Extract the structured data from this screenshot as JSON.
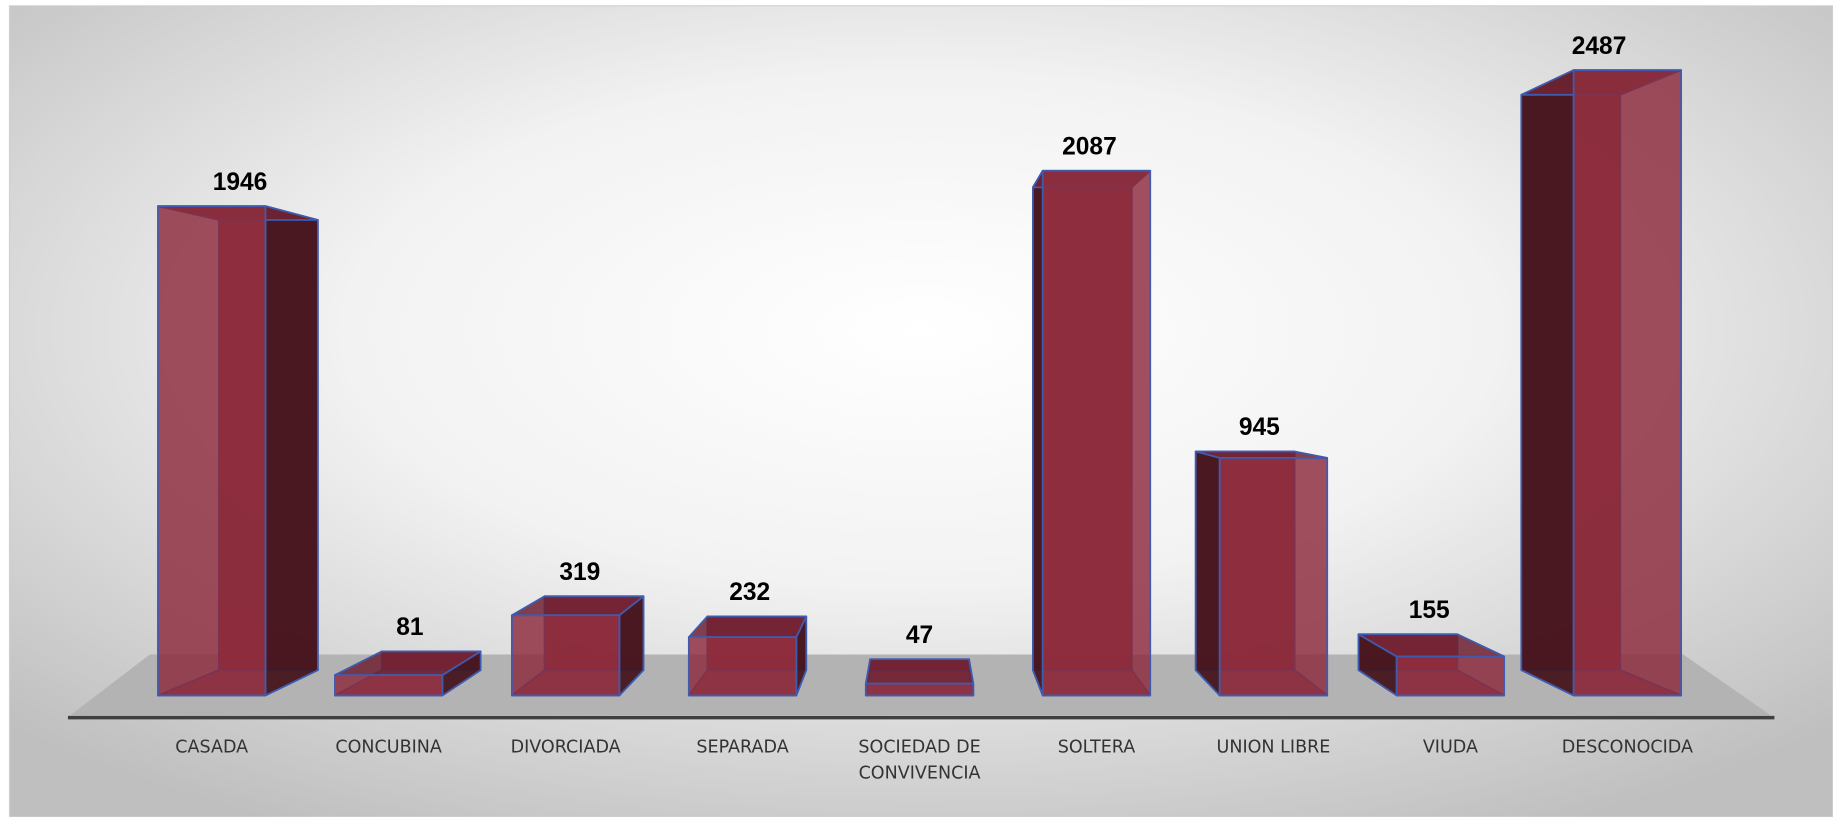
{
  "chart_data": {
    "type": "bar3d",
    "categories": [
      "CASADA",
      "CONCUBINA",
      "DIVORCIADA",
      "SEPARADA",
      "SOCIEDAD DE CONVIVENCIA",
      "SOLTERA",
      "UNION LIBRE",
      "VIUDA",
      "DESCONOCIDA"
    ],
    "values": [
      1946,
      81,
      319,
      232,
      47,
      2087,
      945,
      155,
      2487
    ],
    "color": "#8b2a3a",
    "edge_color": "#3f5bb0"
  }
}
